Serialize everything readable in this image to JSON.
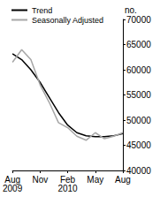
{
  "chart_data": {
    "type": "line",
    "y_label": "no.",
    "categories": [
      "Aug\n2009",
      null,
      null,
      "Nov",
      null,
      null,
      "Feb\n2010",
      null,
      null,
      "May",
      null,
      null,
      "Aug"
    ],
    "series": [
      {
        "name": "Trend",
        "color": "#000000",
        "values": [
          63200,
          62000,
          60000,
          57500,
          54500,
          51500,
          49000,
          47500,
          46900,
          46700,
          46700,
          46900,
          47300
        ]
      },
      {
        "name": "Seasonally Adjusted",
        "color": "#a6a6a6",
        "values": [
          61500,
          64000,
          62000,
          57000,
          53500,
          49500,
          48500,
          46800,
          46000,
          47500,
          46300,
          46800,
          47500
        ]
      }
    ],
    "ylim": [
      40000,
      70000
    ],
    "yticks": [
      40000,
      45000,
      50000,
      55000,
      60000,
      65000,
      70000
    ],
    "legend": "top-left",
    "grid": false
  }
}
